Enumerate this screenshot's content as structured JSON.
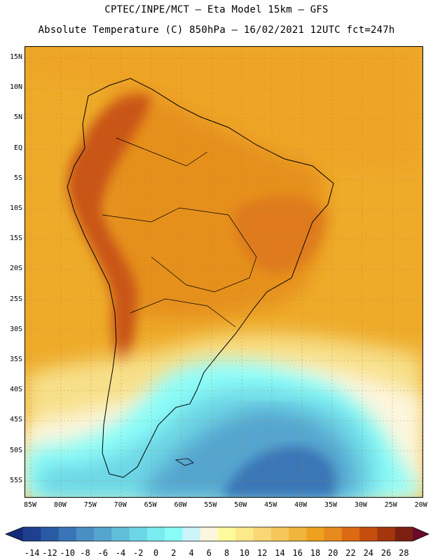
{
  "header": {
    "line1": "CPTEC/INPE/MCT –  Eta Model 15km – GFS",
    "line2": "Absolute Temperature (C) 850hPa – 16/02/2021 12UTC fct=247h"
  },
  "map": {
    "lat_ticks": [
      "15N",
      "10N",
      "5N",
      "EQ",
      "5S",
      "10S",
      "15S",
      "20S",
      "25S",
      "30S",
      "35S",
      "40S",
      "45S",
      "50S",
      "55S"
    ],
    "lon_ticks": [
      "85W",
      "80W",
      "75W",
      "70W",
      "65W",
      "60W",
      "55W",
      "50W",
      "45W",
      "40W",
      "35W",
      "30W",
      "25W",
      "20W"
    ]
  },
  "colorbar": {
    "labels": [
      "-14",
      "-12",
      "-10",
      "-8",
      "-6",
      "-4",
      "-2",
      "0",
      "2",
      "4",
      "6",
      "8",
      "10",
      "12",
      "14",
      "16",
      "18",
      "20",
      "22",
      "24",
      "26",
      "28"
    ],
    "colors": [
      "#1f3f8f",
      "#2a5aa3",
      "#3a76b7",
      "#4a8fc4",
      "#55a5cf",
      "#62bdda",
      "#6dd6e5",
      "#78ecf0",
      "#8afcf8",
      "#cbf4f8",
      "#fdf6de",
      "#fefa9c",
      "#fce98a",
      "#f9d775",
      "#f5c75b",
      "#f0b53c",
      "#eda11f",
      "#e68a1d",
      "#dc6a12",
      "#c54e0f",
      "#a3360d",
      "#7b2010"
    ]
  }
}
